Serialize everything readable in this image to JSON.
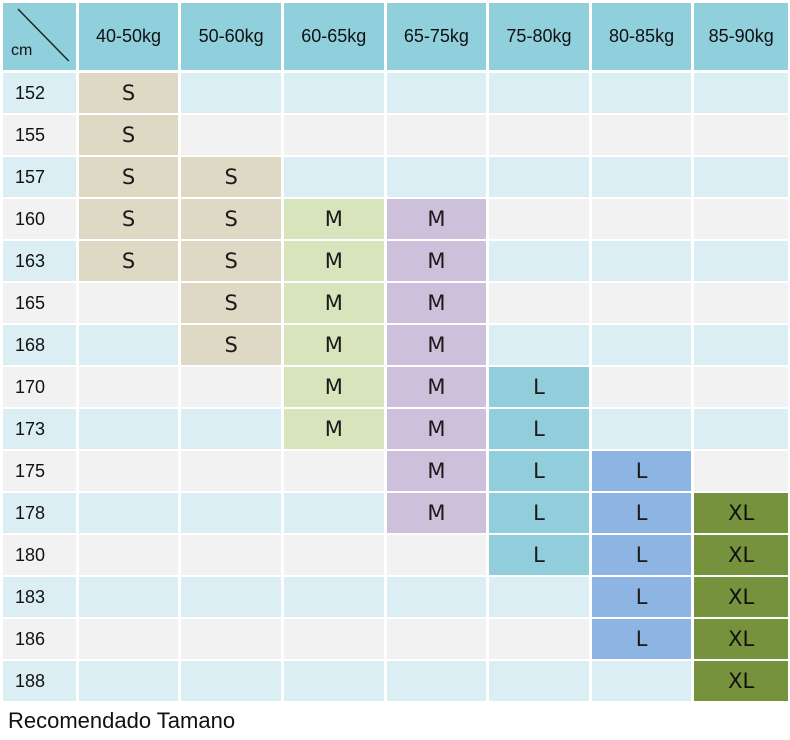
{
  "table": {
    "corner_label": "cm",
    "weight_headers": [
      "40-50kg",
      "50-60kg",
      "60-65kg",
      "65-75kg",
      "75-80kg",
      "80-85kg",
      "85-90kg"
    ],
    "rows": [
      {
        "height": "152",
        "sizes": [
          "S",
          "",
          "",
          "",
          "",
          "",
          ""
        ]
      },
      {
        "height": "155",
        "sizes": [
          "S",
          "",
          "",
          "",
          "",
          "",
          ""
        ]
      },
      {
        "height": "157",
        "sizes": [
          "S",
          "S",
          "",
          "",
          "",
          "",
          ""
        ]
      },
      {
        "height": "160",
        "sizes": [
          "S",
          "S",
          "M",
          "M",
          "",
          "",
          ""
        ]
      },
      {
        "height": "163",
        "sizes": [
          "S",
          "S",
          "M",
          "M",
          "",
          "",
          ""
        ]
      },
      {
        "height": "165",
        "sizes": [
          "",
          "S",
          "M",
          "M",
          "",
          "",
          ""
        ]
      },
      {
        "height": "168",
        "sizes": [
          "",
          "S",
          "M",
          "M",
          "",
          "",
          ""
        ]
      },
      {
        "height": "170",
        "sizes": [
          "",
          "",
          "M",
          "M",
          "L",
          "",
          ""
        ]
      },
      {
        "height": "173",
        "sizes": [
          "",
          "",
          "M",
          "M",
          "L",
          "",
          ""
        ]
      },
      {
        "height": "175",
        "sizes": [
          "",
          "",
          "",
          "M",
          "L",
          "L",
          ""
        ]
      },
      {
        "height": "178",
        "sizes": [
          "",
          "",
          "",
          "M",
          "L",
          "L",
          "XL"
        ]
      },
      {
        "height": "180",
        "sizes": [
          "",
          "",
          "",
          "",
          "L",
          "L",
          "XL"
        ]
      },
      {
        "height": "183",
        "sizes": [
          "",
          "",
          "",
          "",
          "",
          "L",
          "XL"
        ]
      },
      {
        "height": "186",
        "sizes": [
          "",
          "",
          "",
          "",
          "",
          "L",
          "XL"
        ]
      },
      {
        "height": "188",
        "sizes": [
          "",
          "",
          "",
          "",
          "",
          "",
          "XL"
        ]
      }
    ]
  },
  "colors": {
    "header": "#8fd0dc",
    "row_odd": "#dbeef3",
    "row_even": "#f2f2f2",
    "size_S": "#ddd9c4",
    "size_M_col3": "#d8e4bc",
    "size_M_col4": "#ccc0da",
    "size_L_col5": "#92cddc",
    "size_L_col6": "#8db4e2",
    "size_XL": "#76923c"
  },
  "footer": {
    "title": "Recomendado Tamano"
  }
}
